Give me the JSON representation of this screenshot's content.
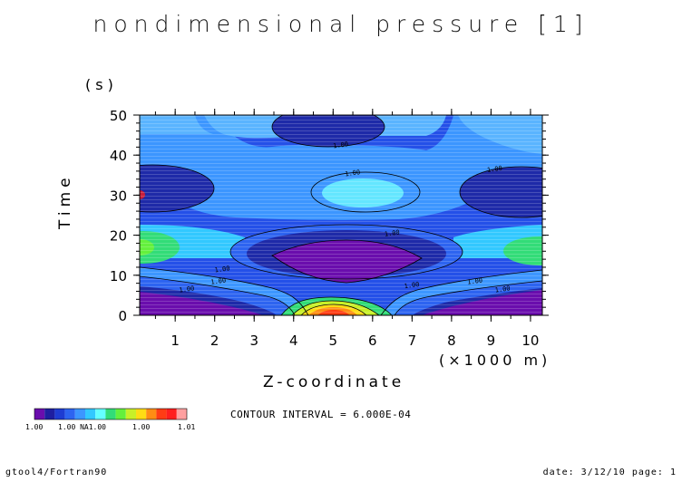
{
  "chart_data": {
    "type": "heatmap",
    "title": "nondimensional pressure [1]",
    "xlabel": "Z-coordinate",
    "x_unit_label": "(×1000 m)",
    "ylabel": "Time",
    "y_unit_label": "(s)",
    "xlim": [
      0.1,
      10.3
    ],
    "ylim": [
      0,
      50
    ],
    "x_ticks": [
      1,
      2,
      3,
      4,
      5,
      6,
      7,
      8,
      9,
      10
    ],
    "y_ticks": [
      0,
      10,
      20,
      30,
      40,
      50
    ],
    "contour_interval_text": "CONTOUR INTERVAL = 6.000E-04",
    "contour_labels": [
      {
        "text": "1.00",
        "x": 5.2,
        "y": 42
      },
      {
        "text": "1.00",
        "x": 5.5,
        "y": 35
      },
      {
        "text": "1.00",
        "x": 9.1,
        "y": 36
      },
      {
        "text": "1.00",
        "x": 6.5,
        "y": 20
      },
      {
        "text": "1.00",
        "x": 2.2,
        "y": 11
      },
      {
        "text": "1.00",
        "x": 2.1,
        "y": 8
      },
      {
        "text": "1.00",
        "x": 1.3,
        "y": 6
      },
      {
        "text": "1.00",
        "x": 7.0,
        "y": 7
      },
      {
        "text": "1.00",
        "x": 8.6,
        "y": 8
      },
      {
        "text": "1.00",
        "x": 9.3,
        "y": 6
      }
    ],
    "colorbar": {
      "colors": [
        "#6a0dad",
        "#1e1ea0",
        "#1e3cd2",
        "#2d64f0",
        "#3c96ff",
        "#32c8ff",
        "#64ffff",
        "#32dc78",
        "#64f03c",
        "#c8f028",
        "#ffdc14",
        "#ff8c14",
        "#ff3c14",
        "#ff1e1e",
        "#ffa0a0"
      ],
      "labels": [
        "1.00",
        "1.00 NA1.00",
        "1.00",
        "1.01"
      ]
    },
    "grid": false
  },
  "footer": {
    "left": "gtool4/Fortran90",
    "right": "date: 3/12/10 page: 1"
  }
}
